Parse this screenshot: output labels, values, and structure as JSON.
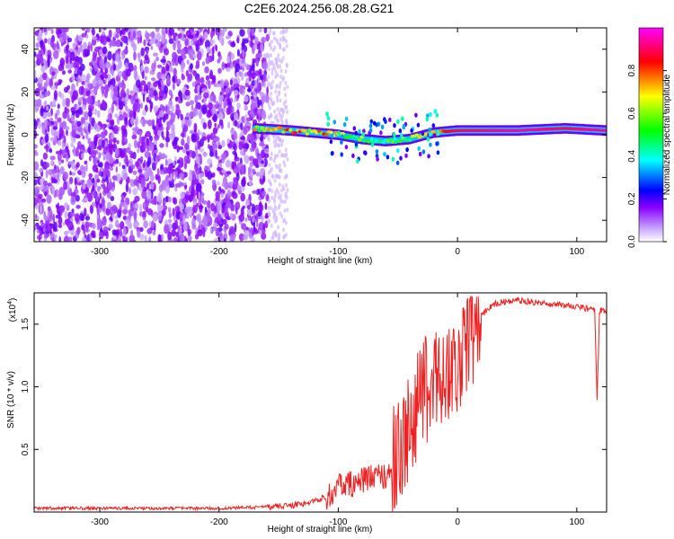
{
  "title": "C2E6.2024.256.08.28.G21",
  "chart_data": [
    {
      "type": "heatmap",
      "xlabel": "Height of straight line (km)",
      "ylabel": "Frequency (Hz)",
      "xlim": [
        -355,
        125
      ],
      "ylim": [
        -50,
        50
      ],
      "x_ticks": [
        -300,
        -200,
        -100,
        0,
        100
      ],
      "y_ticks": [
        -40,
        -20,
        0,
        20,
        40
      ],
      "colorbar": {
        "label": "Normalized spectral amplitude",
        "range": [
          0,
          1
        ],
        "ticks": [
          "0.0",
          "0.2",
          "0.4",
          "0.6",
          "0.8"
        ],
        "colors": [
          "#ffffff",
          "#8b00ff",
          "#0000ff",
          "#00ffff",
          "#00ff00",
          "#ffff00",
          "#ff0000",
          "#ff00ff"
        ]
      },
      "noise_region": {
        "x_range": [
          -355,
          -150
        ],
        "freq_range": [
          -50,
          50
        ],
        "amplitude": "0.1-0.3"
      },
      "ridge": [
        {
          "x": -170,
          "freq": 3,
          "amp": 0.7
        },
        {
          "x": -140,
          "freq": 2,
          "amp": 0.8
        },
        {
          "x": -120,
          "freq": 1,
          "amp": 0.85
        },
        {
          "x": -100,
          "freq": 0,
          "amp": 0.7
        },
        {
          "x": -80,
          "freq": -2,
          "amp": 0.6
        },
        {
          "x": -60,
          "freq": -3,
          "amp": 0.55
        },
        {
          "x": -40,
          "freq": -2,
          "amp": 0.6
        },
        {
          "x": -20,
          "freq": 1,
          "amp": 0.8
        },
        {
          "x": 0,
          "freq": 2,
          "amp": 0.9
        },
        {
          "x": 50,
          "freq": 2,
          "amp": 0.95
        },
        {
          "x": 90,
          "freq": 3,
          "amp": 0.9
        },
        {
          "x": 125,
          "freq": 2,
          "amp": 0.95
        }
      ]
    },
    {
      "type": "line",
      "xlabel": "Height of straight line (km)",
      "ylabel": "SNR (10 * v/v)",
      "y_scale_label": "(x10",
      "y_scale_exp": "4",
      "xlim": [
        -355,
        125
      ],
      "ylim": [
        0,
        1.75
      ],
      "x_ticks": [
        -300,
        -200,
        -100,
        0,
        100
      ],
      "y_ticks": [
        "0.5",
        "1.0",
        "1.5"
      ],
      "series": [
        {
          "color": "#ee2020",
          "x": [
            -355,
            -300,
            -250,
            -200,
            -160,
            -130,
            -110,
            -100,
            -90,
            -80,
            -70,
            -60,
            -50,
            -45,
            -40,
            -35,
            -30,
            -25,
            -20,
            -15,
            -10,
            -5,
            0,
            5,
            10,
            15,
            20,
            25,
            30,
            40,
            50,
            60,
            70,
            80,
            90,
            100,
            110,
            115,
            117,
            118,
            119,
            120,
            125
          ],
          "y": [
            0.03,
            0.03,
            0.03,
            0.03,
            0.04,
            0.06,
            0.12,
            0.2,
            0.22,
            0.25,
            0.28,
            0.3,
            0.45,
            0.55,
            0.7,
            0.8,
            0.9,
            1.0,
            1.05,
            1.1,
            1.1,
            1.12,
            1.2,
            1.3,
            1.42,
            1.5,
            1.57,
            1.62,
            1.66,
            1.68,
            1.69,
            1.68,
            1.67,
            1.66,
            1.65,
            1.64,
            1.62,
            1.61,
            0.9,
            1.2,
            1.6,
            1.61,
            1.6
          ]
        }
      ]
    }
  ]
}
